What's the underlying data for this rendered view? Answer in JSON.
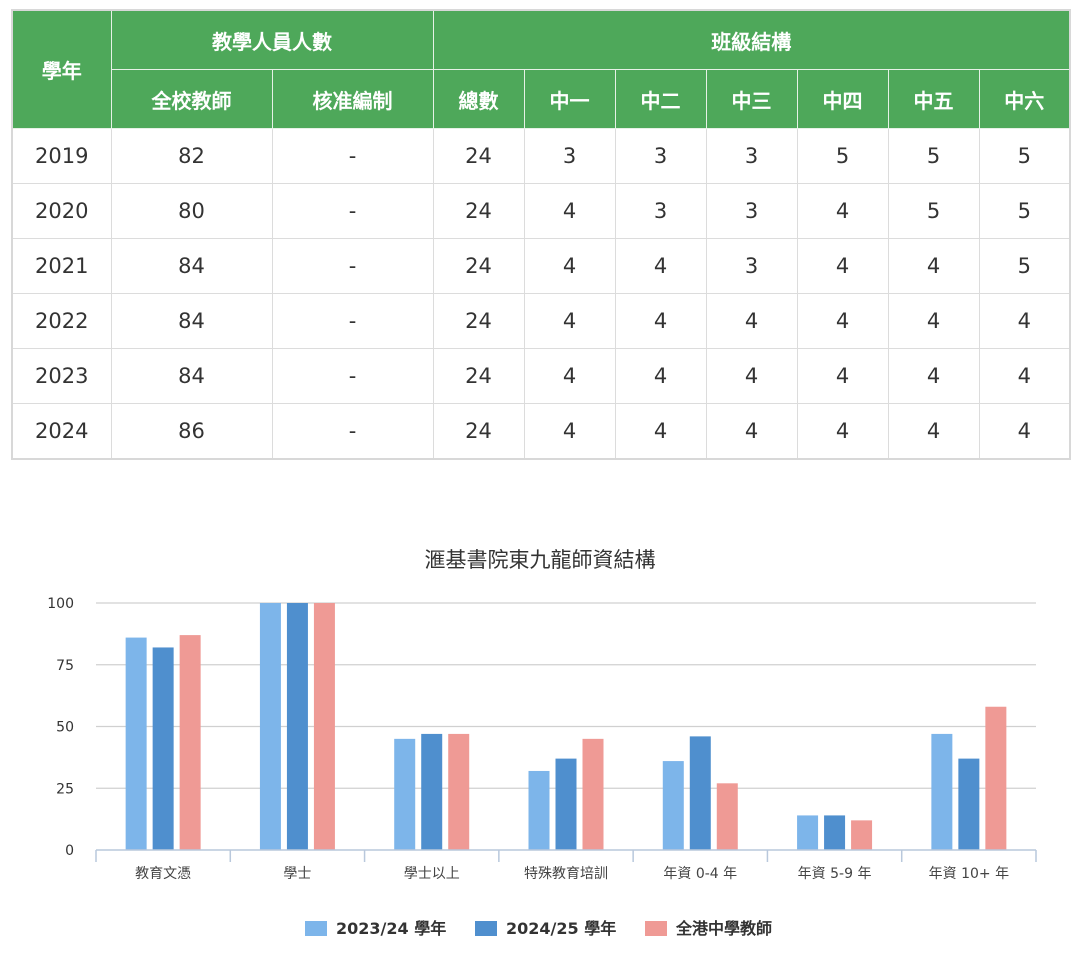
{
  "table": {
    "header": {
      "year": "學年",
      "teachers_group": "教學人員人數",
      "classes_group": "班級結構",
      "teacher_cols": [
        "全校教師",
        "核准編制"
      ],
      "class_cols": [
        "總數",
        "中一",
        "中二",
        "中三",
        "中四",
        "中五",
        "中六"
      ]
    },
    "rows": [
      {
        "year": "2019",
        "cells": [
          "82",
          "-",
          "24",
          "3",
          "3",
          "3",
          "5",
          "5",
          "5"
        ]
      },
      {
        "year": "2020",
        "cells": [
          "80",
          "-",
          "24",
          "4",
          "3",
          "3",
          "4",
          "5",
          "5"
        ]
      },
      {
        "year": "2021",
        "cells": [
          "84",
          "-",
          "24",
          "4",
          "4",
          "3",
          "4",
          "4",
          "5"
        ]
      },
      {
        "year": "2022",
        "cells": [
          "84",
          "-",
          "24",
          "4",
          "4",
          "4",
          "4",
          "4",
          "4"
        ]
      },
      {
        "year": "2023",
        "cells": [
          "84",
          "-",
          "24",
          "4",
          "4",
          "4",
          "4",
          "4",
          "4"
        ]
      },
      {
        "year": "2024",
        "cells": [
          "86",
          "-",
          "24",
          "4",
          "4",
          "4",
          "4",
          "4",
          "4"
        ]
      }
    ]
  },
  "chart_data": {
    "type": "bar",
    "title": "滙基書院東九龍師資結構",
    "categories": [
      "教育文憑",
      "學士",
      "學士以上",
      "特殊教育培訓",
      "年資 0-4 年",
      "年資 5-9 年",
      "年資 10+ 年"
    ],
    "series": [
      {
        "name": "2023/24 學年",
        "color": "#7db5ea",
        "values": [
          86,
          100,
          45,
          32,
          36,
          14,
          47
        ]
      },
      {
        "name": "2024/25 學年",
        "color": "#4f8fce",
        "values": [
          82,
          100,
          47,
          37,
          46,
          14,
          37
        ]
      },
      {
        "name": "全港中學教師",
        "color": "#ef9a95",
        "values": [
          87,
          100,
          47,
          45,
          27,
          12,
          58
        ]
      }
    ],
    "ylim": [
      0,
      100
    ],
    "yticks": [
      0,
      25,
      50,
      75,
      100
    ],
    "grid": true,
    "legend": "bottom",
    "xlabel": "",
    "ylabel": ""
  }
}
